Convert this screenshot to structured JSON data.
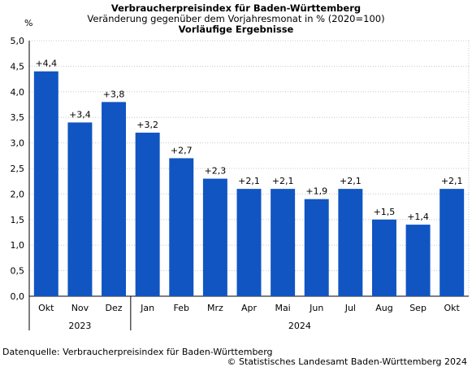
{
  "header": {
    "title": "Verbraucherpreisindex für Baden-Württemberg",
    "subtitle": "Veränderung gegenüber dem Vorjahresmonat in % (2020=100)",
    "subtitle2": "Vorläufige Ergebnisse",
    "unit": "%"
  },
  "footer": {
    "source": "Datenquelle: Verbraucherpreisindex für Baden-Württemberg",
    "copyright": "© Statistisches Landesamt Baden-Württemberg 2024"
  },
  "colors": {
    "bar": "#1055C2",
    "grid": "#c8c8c8"
  },
  "chart_data": {
    "type": "bar",
    "categories": [
      "Okt",
      "Nov",
      "Dez",
      "Jan",
      "Feb",
      "Mrz",
      "Apr",
      "Mai",
      "Jun",
      "Jul",
      "Aug",
      "Sep",
      "Okt"
    ],
    "values": [
      4.4,
      3.4,
      3.8,
      3.2,
      2.7,
      2.3,
      2.1,
      2.1,
      1.9,
      2.1,
      1.5,
      1.4,
      2.1
    ],
    "data_labels": [
      "+4,4",
      "+3,4",
      "+3,8",
      "+3,2",
      "+2,7",
      "+2,3",
      "+2,1",
      "+2,1",
      "+1,9",
      "+2,1",
      "+1,5",
      "+1,4",
      "+2,1"
    ],
    "year_groups": [
      {
        "label": "2023",
        "count": 3
      },
      {
        "label": "2024",
        "count": 10
      }
    ],
    "yticks": [
      "0,0",
      "0,5",
      "1,0",
      "1,5",
      "2,0",
      "2,5",
      "3,0",
      "3,5",
      "4,0",
      "4,5",
      "5,0"
    ],
    "ylim": [
      0,
      5
    ],
    "grid": true,
    "title": "Verbraucherpreisindex für Baden-Württemberg",
    "xlabel": "",
    "ylabel": "%"
  }
}
